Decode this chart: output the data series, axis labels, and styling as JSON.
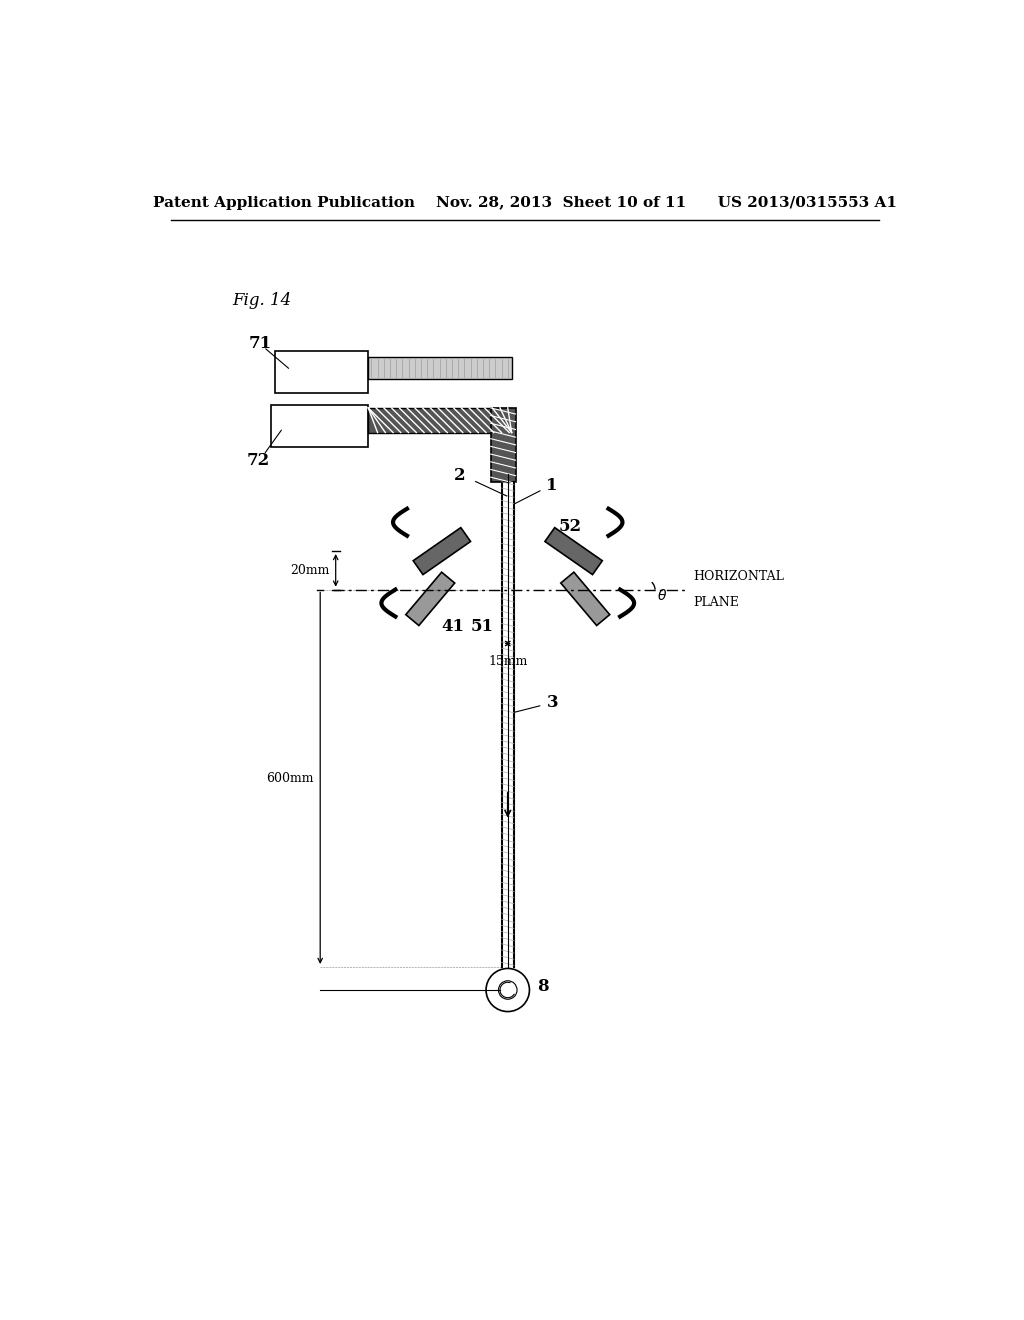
{
  "background_color": "#ffffff",
  "header_line1": "Patent Application Publication",
  "header_line2": "Nov. 28, 2013  Sheet 10 of 11",
  "header_line3": "US 2013/0315553 A1",
  "fig_label": "Fig. 14"
}
